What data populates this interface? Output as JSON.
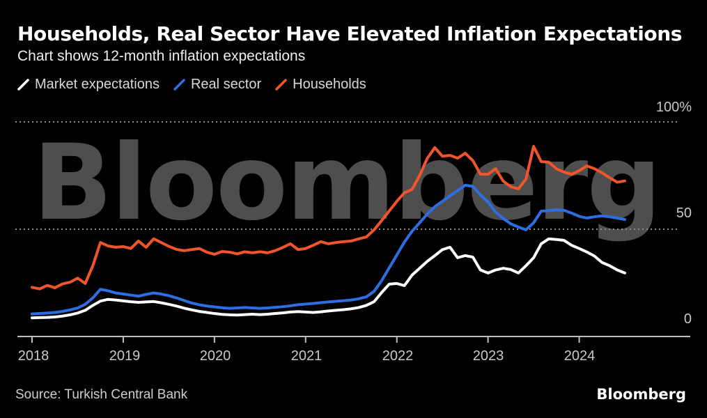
{
  "header": {
    "title": "Households, Real Sector Have Elevated Inflation Expectations",
    "subtitle": "Chart shows 12-month inflation expectations"
  },
  "legend": {
    "items": [
      {
        "label": "Market expectations",
        "color": "#ffffff",
        "icon": "slash-line-icon"
      },
      {
        "label": "Real sector",
        "color": "#2d6fe3",
        "icon": "slash-line-icon"
      },
      {
        "label": "Households",
        "color": "#f2552b",
        "icon": "slash-line-icon"
      }
    ]
  },
  "watermark": "Bloomberg",
  "chart_data": {
    "type": "line",
    "title": "Households, Real Sector Have Elevated Inflation Expectations",
    "subtitle": "Chart shows 12-month inflation expectations",
    "unit": "%",
    "x_start": "2018-01",
    "x_end": "2024-07",
    "x_interval": "monthly",
    "x_ticks": [
      "2018",
      "2019",
      "2020",
      "2021",
      "2022",
      "2023",
      "2024"
    ],
    "y_ticks": [
      {
        "label": "100%",
        "value": 100,
        "style": "dotted"
      },
      {
        "label": "50",
        "value": 50,
        "style": "dotted"
      },
      {
        "label": "0",
        "value": 0,
        "style": "solid-axis"
      }
    ],
    "ylim": [
      0,
      100
    ],
    "grid": "horizontal-dotted",
    "legend_position": "top-left",
    "series": [
      {
        "name": "Market expectations",
        "color": "#ffffff",
        "values": [
          8.7,
          8.8,
          8.9,
          9.1,
          9.5,
          10.1,
          10.9,
          12.2,
          14.5,
          16.5,
          17.3,
          17.0,
          16.6,
          16.2,
          15.9,
          16.1,
          16.3,
          15.7,
          15.0,
          14.2,
          13.2,
          12.4,
          11.7,
          11.2,
          10.7,
          10.3,
          10.1,
          10.0,
          10.2,
          10.4,
          10.2,
          10.4,
          10.7,
          11.0,
          11.4,
          11.6,
          11.4,
          11.2,
          11.5,
          11.9,
          12.2,
          12.5,
          12.9,
          13.5,
          14.5,
          16.2,
          20.5,
          24.4,
          24.7,
          23.7,
          28.6,
          31.8,
          35.0,
          37.7,
          40.5,
          41.6,
          36.7,
          37.7,
          37.0,
          31.0,
          29.6,
          31.0,
          31.8,
          31.2,
          29.6,
          33.0,
          36.7,
          43.2,
          45.5,
          45.2,
          44.8,
          42.5,
          41.0,
          39.4,
          37.5,
          34.5,
          33.0,
          31.0,
          29.6
        ]
      },
      {
        "name": "Real sector",
        "color": "#2d6fe3",
        "values": [
          10.5,
          10.7,
          10.9,
          11.2,
          11.7,
          12.4,
          13.3,
          15.0,
          18.0,
          22.0,
          21.3,
          20.3,
          19.8,
          19.3,
          18.8,
          19.6,
          20.3,
          19.8,
          19.0,
          18.0,
          16.8,
          15.6,
          14.8,
          14.2,
          13.8,
          13.4,
          13.1,
          13.3,
          13.5,
          13.3,
          13.1,
          13.3,
          13.6,
          13.9,
          14.3,
          14.8,
          15.1,
          15.4,
          15.8,
          16.1,
          16.4,
          16.7,
          17.0,
          17.6,
          18.5,
          21.0,
          26.0,
          32.0,
          38.0,
          44.0,
          49.0,
          53.0,
          57.0,
          60.5,
          63.0,
          65.5,
          68.0,
          70.5,
          70.0,
          66.0,
          62.7,
          58.0,
          55.0,
          52.5,
          51.0,
          49.7,
          53.0,
          58.4,
          58.7,
          59.0,
          58.8,
          57.5,
          56.0,
          55.2,
          55.8,
          56.2,
          55.8,
          55.2,
          54.5
        ]
      },
      {
        "name": "Households",
        "color": "#f2552b",
        "values": [
          22.9,
          22.2,
          23.8,
          22.7,
          24.5,
          25.3,
          27.2,
          24.7,
          33.0,
          43.8,
          42.2,
          41.6,
          41.9,
          41.0,
          44.5,
          41.6,
          45.5,
          43.8,
          42.0,
          40.6,
          40.0,
          40.5,
          41.0,
          39.3,
          38.3,
          39.6,
          39.3,
          38.5,
          39.5,
          39.0,
          39.5,
          39.0,
          40.0,
          41.5,
          43.2,
          40.5,
          41.0,
          42.5,
          44.2,
          43.2,
          43.8,
          44.2,
          44.5,
          45.5,
          46.4,
          49.7,
          54.0,
          58.5,
          63.0,
          67.0,
          68.5,
          75.0,
          83.0,
          88.0,
          84.0,
          84.4,
          83.1,
          85.4,
          82.0,
          75.6,
          75.6,
          78.2,
          72.4,
          69.8,
          68.8,
          73.4,
          88.6,
          81.5,
          81.2,
          78.2,
          76.6,
          75.6,
          77.3,
          79.5,
          78.2,
          76.3,
          74.0,
          71.9,
          72.5
        ]
      }
    ]
  },
  "footer": {
    "source": "Source: Turkish Central Bank",
    "logo": "Bloomberg"
  }
}
